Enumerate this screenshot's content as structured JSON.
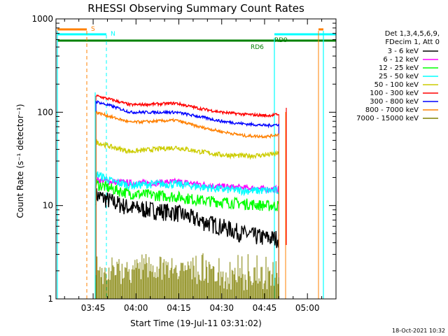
{
  "chart_data": {
    "type": "line",
    "title": "RHESSI Observing Summary Count Rates",
    "xlabel": "Start Time (19-Jul-11 03:31:02)",
    "ylabel": "Count Rate (s⁻¹ detector⁻¹)",
    "yscale": "log",
    "ylim": [
      1,
      1000
    ],
    "xlim_minutes": [
      212,
      310
    ],
    "x_ticks": [
      {
        "m": 225,
        "label": "03:45"
      },
      {
        "m": 240,
        "label": "04:00"
      },
      {
        "m": 255,
        "label": "04:15"
      },
      {
        "m": 270,
        "label": "04:30"
      },
      {
        "m": 285,
        "label": "04:45"
      },
      {
        "m": 300,
        "label": "05:00"
      }
    ],
    "y_ticks": [
      {
        "v": 1,
        "label": "1"
      },
      {
        "v": 10,
        "label": "10"
      },
      {
        "v": 100,
        "label": "100"
      },
      {
        "v": 1000,
        "label": "1000"
      }
    ],
    "legend": {
      "position": "right",
      "header": [
        "Det 1,3,4,5,6,9,",
        "FDecim 1, Att 0"
      ]
    },
    "series": [
      {
        "name": "3 - 6 keV",
        "color": "#000000",
        "points": [
          [
            226,
            13
          ],
          [
            232,
            11
          ],
          [
            238,
            9.5
          ],
          [
            246,
            9
          ],
          [
            254,
            8.5
          ],
          [
            262,
            7
          ],
          [
            270,
            6
          ],
          [
            278,
            5
          ],
          [
            286,
            4.5
          ],
          [
            290,
            4.5
          ]
        ]
      },
      {
        "name": "6 - 12 keV",
        "color": "#ff00ff",
        "points": [
          [
            226,
            19
          ],
          [
            232,
            18
          ],
          [
            238,
            17.5
          ],
          [
            246,
            17.5
          ],
          [
            254,
            18
          ],
          [
            262,
            17
          ],
          [
            270,
            16
          ],
          [
            278,
            15.5
          ],
          [
            286,
            15
          ],
          [
            290,
            15
          ]
        ]
      },
      {
        "name": "12 - 25 keV",
        "color": "#00ff00",
        "points": [
          [
            226,
            17
          ],
          [
            232,
            15
          ],
          [
            238,
            13.5
          ],
          [
            246,
            13
          ],
          [
            254,
            12.5
          ],
          [
            262,
            11.5
          ],
          [
            270,
            11
          ],
          [
            278,
            10.5
          ],
          [
            286,
            10
          ],
          [
            290,
            10
          ]
        ]
      },
      {
        "name": "25 - 50 keV",
        "color": "#00ffff",
        "points": [
          [
            226,
            22
          ],
          [
            232,
            18
          ],
          [
            238,
            16.5
          ],
          [
            246,
            17
          ],
          [
            254,
            17
          ],
          [
            262,
            16
          ],
          [
            270,
            15
          ],
          [
            278,
            14.5
          ],
          [
            286,
            14.5
          ],
          [
            290,
            14.5
          ]
        ]
      },
      {
        "name": "50 - 100 keV",
        "color": "#cccc00",
        "points": [
          [
            226,
            48
          ],
          [
            232,
            42
          ],
          [
            238,
            38
          ],
          [
            246,
            40
          ],
          [
            254,
            42
          ],
          [
            262,
            38
          ],
          [
            270,
            35
          ],
          [
            278,
            34
          ],
          [
            286,
            35
          ],
          [
            290,
            36
          ]
        ]
      },
      {
        "name": "100 - 300 keV",
        "color": "#ff0000",
        "points": [
          [
            226,
            150
          ],
          [
            232,
            135
          ],
          [
            238,
            120
          ],
          [
            246,
            122
          ],
          [
            254,
            125
          ],
          [
            262,
            110
          ],
          [
            270,
            100
          ],
          [
            278,
            95
          ],
          [
            286,
            92
          ],
          [
            290,
            95
          ]
        ]
      },
      {
        "name": "300 - 800 keV",
        "color": "#0000ff",
        "points": [
          [
            226,
            130
          ],
          [
            232,
            115
          ],
          [
            238,
            100
          ],
          [
            246,
            100
          ],
          [
            254,
            100
          ],
          [
            262,
            90
          ],
          [
            270,
            80
          ],
          [
            278,
            75
          ],
          [
            286,
            72
          ],
          [
            290,
            74
          ]
        ]
      },
      {
        "name": "800 - 7000 keV",
        "color": "#ff8000",
        "points": [
          [
            226,
            100
          ],
          [
            232,
            88
          ],
          [
            238,
            78
          ],
          [
            246,
            80
          ],
          [
            254,
            82
          ],
          [
            262,
            70
          ],
          [
            270,
            62
          ],
          [
            278,
            56
          ],
          [
            286,
            55
          ],
          [
            290,
            58
          ]
        ]
      },
      {
        "name": "7000 - 15000 keV",
        "color": "#808000",
        "points": [
          [
            226,
            1.8
          ],
          [
            240,
            2.0
          ],
          [
            254,
            2.2
          ],
          [
            262,
            1.8
          ],
          [
            276,
            1.6
          ],
          [
            290,
            1.7
          ]
        ]
      }
    ],
    "annotations": [
      {
        "label": "S",
        "color": "#ff8000"
      },
      {
        "label": "N",
        "color": "#00ffff"
      },
      {
        "label": "RD6",
        "color": "#008000"
      },
      {
        "label": "RD9",
        "color": "#008000"
      }
    ],
    "timestamp": "18-Oct-2021 10:32"
  }
}
